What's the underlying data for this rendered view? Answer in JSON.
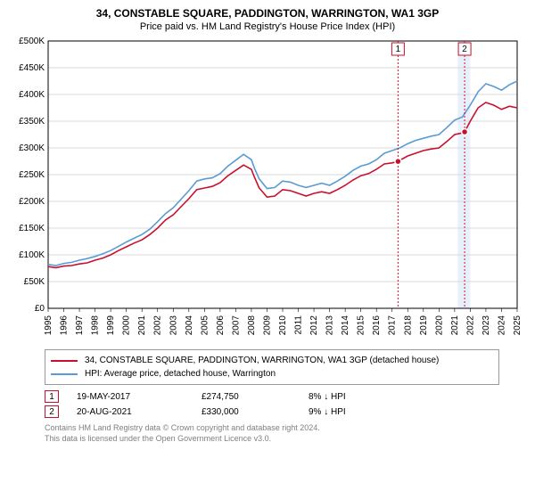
{
  "title": "34, CONSTABLE SQUARE, PADDINGTON, WARRINGTON, WA1 3GP",
  "subtitle": "Price paid vs. HM Land Registry's House Price Index (HPI)",
  "chart": {
    "plot_bg": "#ffffff",
    "grid_color": "#d9d9d9",
    "border_color": "#000000",
    "y": {
      "min": 0,
      "max": 500000,
      "step": 50000,
      "ticks": [
        "£0",
        "£50K",
        "£100K",
        "£150K",
        "£200K",
        "£250K",
        "£300K",
        "£350K",
        "£400K",
        "£450K",
        "£500K"
      ]
    },
    "x": {
      "min": 1995,
      "max": 2025,
      "step": 1,
      "ticks": [
        "1995",
        "1996",
        "1997",
        "1998",
        "1999",
        "2000",
        "2001",
        "2002",
        "2003",
        "2004",
        "2005",
        "2006",
        "2007",
        "2008",
        "2009",
        "2010",
        "2011",
        "2012",
        "2013",
        "2014",
        "2015",
        "2016",
        "2017",
        "2018",
        "2019",
        "2020",
        "2021",
        "2022",
        "2023",
        "2024",
        "2025"
      ]
    },
    "series": [
      {
        "name": "subject",
        "color": "#c8102e",
        "width": 1.6,
        "data": [
          [
            1995,
            78000
          ],
          [
            1995.5,
            76000
          ],
          [
            1996,
            79000
          ],
          [
            1996.5,
            80000
          ],
          [
            1997,
            83000
          ],
          [
            1997.5,
            85000
          ],
          [
            1998,
            90000
          ],
          [
            1998.5,
            94000
          ],
          [
            1999,
            100000
          ],
          [
            1999.5,
            108000
          ],
          [
            2000,
            115000
          ],
          [
            2000.5,
            122000
          ],
          [
            2001,
            128000
          ],
          [
            2001.5,
            138000
          ],
          [
            2002,
            150000
          ],
          [
            2002.5,
            165000
          ],
          [
            2003,
            175000
          ],
          [
            2003.5,
            190000
          ],
          [
            2004,
            205000
          ],
          [
            2004.5,
            222000
          ],
          [
            2005,
            225000
          ],
          [
            2005.5,
            228000
          ],
          [
            2006,
            235000
          ],
          [
            2006.5,
            248000
          ],
          [
            2007,
            258000
          ],
          [
            2007.5,
            268000
          ],
          [
            2008,
            260000
          ],
          [
            2008.2,
            245000
          ],
          [
            2008.5,
            225000
          ],
          [
            2009,
            208000
          ],
          [
            2009.5,
            210000
          ],
          [
            2010,
            222000
          ],
          [
            2010.5,
            220000
          ],
          [
            2011,
            215000
          ],
          [
            2011.5,
            210000
          ],
          [
            2012,
            215000
          ],
          [
            2012.5,
            218000
          ],
          [
            2013,
            215000
          ],
          [
            2013.5,
            222000
          ],
          [
            2014,
            230000
          ],
          [
            2014.5,
            240000
          ],
          [
            2015,
            248000
          ],
          [
            2015.5,
            252000
          ],
          [
            2016,
            260000
          ],
          [
            2016.5,
            270000
          ],
          [
            2017,
            272000
          ],
          [
            2017.38,
            274750
          ],
          [
            2017.5,
            277000
          ],
          [
            2018,
            285000
          ],
          [
            2018.5,
            290000
          ],
          [
            2019,
            295000
          ],
          [
            2019.5,
            298000
          ],
          [
            2020,
            300000
          ],
          [
            2020.5,
            312000
          ],
          [
            2021,
            325000
          ],
          [
            2021.5,
            328000
          ],
          [
            2021.64,
            330000
          ],
          [
            2022,
            350000
          ],
          [
            2022.5,
            375000
          ],
          [
            2023,
            385000
          ],
          [
            2023.5,
            380000
          ],
          [
            2024,
            372000
          ],
          [
            2024.5,
            378000
          ],
          [
            2025,
            375000
          ]
        ]
      },
      {
        "name": "hpi",
        "color": "#5b9bd5",
        "width": 1.3,
        "data": [
          [
            1995,
            82000
          ],
          [
            1995.5,
            80000
          ],
          [
            1996,
            84000
          ],
          [
            1996.5,
            86000
          ],
          [
            1997,
            90000
          ],
          [
            1997.5,
            93000
          ],
          [
            1998,
            97000
          ],
          [
            1998.5,
            102000
          ],
          [
            1999,
            108000
          ],
          [
            1999.5,
            116000
          ],
          [
            2000,
            124000
          ],
          [
            2000.5,
            131000
          ],
          [
            2001,
            138000
          ],
          [
            2001.5,
            148000
          ],
          [
            2002,
            162000
          ],
          [
            2002.5,
            177000
          ],
          [
            2003,
            188000
          ],
          [
            2003.5,
            204000
          ],
          [
            2004,
            220000
          ],
          [
            2004.5,
            238000
          ],
          [
            2005,
            242000
          ],
          [
            2005.5,
            244000
          ],
          [
            2006,
            252000
          ],
          [
            2006.5,
            266000
          ],
          [
            2007,
            277000
          ],
          [
            2007.5,
            288000
          ],
          [
            2008,
            278000
          ],
          [
            2008.2,
            262000
          ],
          [
            2008.5,
            242000
          ],
          [
            2009,
            224000
          ],
          [
            2009.5,
            226000
          ],
          [
            2010,
            238000
          ],
          [
            2010.5,
            236000
          ],
          [
            2011,
            230000
          ],
          [
            2011.5,
            226000
          ],
          [
            2012,
            230000
          ],
          [
            2012.5,
            234000
          ],
          [
            2013,
            230000
          ],
          [
            2013.5,
            238000
          ],
          [
            2014,
            247000
          ],
          [
            2014.5,
            258000
          ],
          [
            2015,
            266000
          ],
          [
            2015.5,
            270000
          ],
          [
            2016,
            278000
          ],
          [
            2016.5,
            290000
          ],
          [
            2017,
            295000
          ],
          [
            2017.5,
            300000
          ],
          [
            2018,
            308000
          ],
          [
            2018.5,
            314000
          ],
          [
            2019,
            318000
          ],
          [
            2019.5,
            322000
          ],
          [
            2020,
            325000
          ],
          [
            2020.5,
            338000
          ],
          [
            2021,
            352000
          ],
          [
            2021.5,
            358000
          ],
          [
            2022,
            380000
          ],
          [
            2022.5,
            405000
          ],
          [
            2023,
            420000
          ],
          [
            2023.5,
            415000
          ],
          [
            2024,
            408000
          ],
          [
            2024.5,
            418000
          ],
          [
            2025,
            425000
          ]
        ]
      }
    ],
    "markers": [
      {
        "n": "1",
        "x": 2017.38,
        "y": 274750,
        "color": "#c8102e",
        "shade_start": 2021.2,
        "shade_end": 2021.9
      },
      {
        "n": "2",
        "x": 2021.64,
        "y": 330000,
        "color": "#c8102e",
        "shade": true
      }
    ],
    "shade": {
      "color": "#e8f1fb",
      "start": 2021.2,
      "end": 2022.0
    }
  },
  "legend": [
    {
      "color": "#c8102e",
      "text": "34, CONSTABLE SQUARE, PADDINGTON, WARRINGTON, WA1 3GP (detached house)"
    },
    {
      "color": "#5b9bd5",
      "text": "HPI: Average price, detached house, Warrington"
    }
  ],
  "transactions": [
    {
      "n": "1",
      "color": "#c8102e",
      "date": "19-MAY-2017",
      "price": "£274,750",
      "delta": "8% ↓ HPI"
    },
    {
      "n": "2",
      "color": "#c8102e",
      "date": "20-AUG-2021",
      "price": "£330,000",
      "delta": "9% ↓ HPI"
    }
  ],
  "footer": [
    "Contains HM Land Registry data © Crown copyright and database right 2024.",
    "This data is licensed under the Open Government Licence v3.0."
  ]
}
